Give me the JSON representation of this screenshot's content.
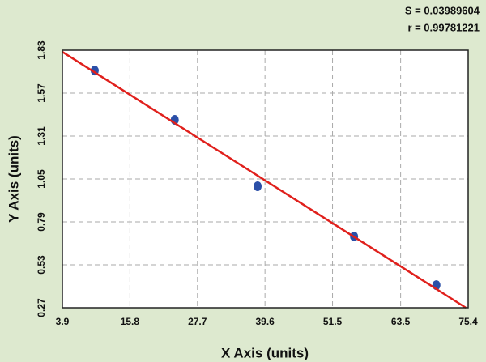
{
  "chart_data": {
    "type": "scatter",
    "stats": [
      "S = 0.03989604",
      "r = 0.99781221"
    ],
    "x_label": "X Axis (units)",
    "y_label": "Y Axis (units)",
    "xlim": [
      3.9,
      75.4
    ],
    "xticks": [
      3.9,
      15.8,
      27.7,
      39.6,
      51.5,
      63.5,
      75.4
    ],
    "ylim": [
      0.27,
      1.83
    ],
    "yticks": [
      0.27,
      0.53,
      0.79,
      1.05,
      1.31,
      1.57,
      1.83
    ],
    "grid": true,
    "points": {
      "color": "#2b4fa8",
      "x": [
        9.6,
        23.7,
        38.3,
        55.3,
        69.8
      ],
      "y": [
        1.707,
        1.408,
        1.006,
        0.702,
        0.407
      ]
    },
    "fit_line": {
      "color": "#e0201c",
      "x": [
        3.9,
        75.0
      ],
      "y": [
        1.82,
        0.27
      ]
    }
  }
}
